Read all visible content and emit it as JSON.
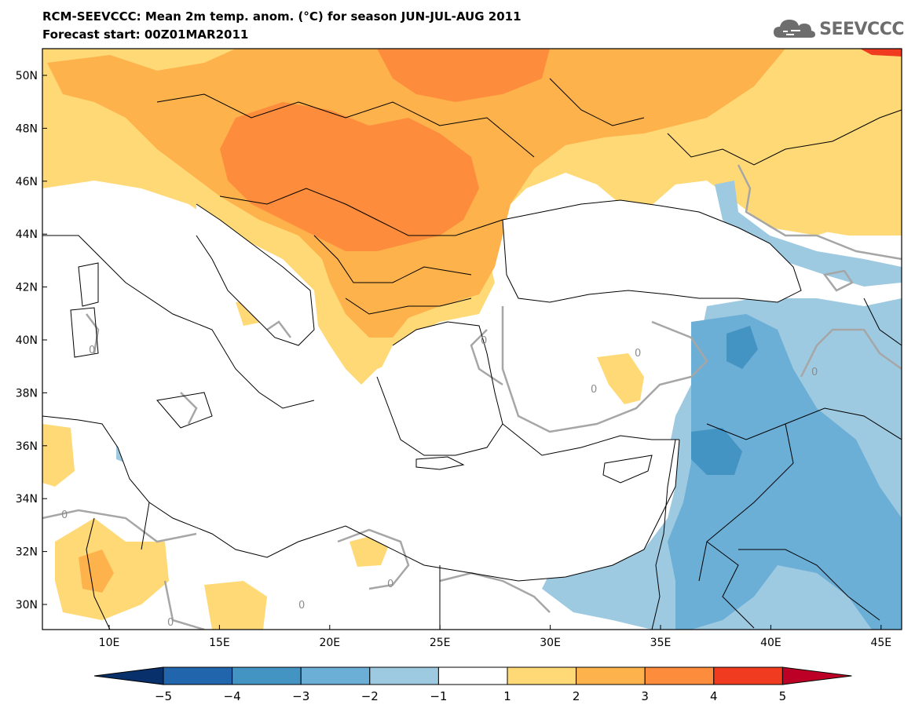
{
  "title_line1": "RCM-SEEVCCC: Mean 2m temp. anom. (°C) for season JUN-JUL-AUG 2011",
  "title_line2": "Forecast start: 00Z01MAR2011",
  "logo_text": "SEEVCCC",
  "lat_labels": [
    "50N",
    "48N",
    "46N",
    "44N",
    "42N",
    "40N",
    "38N",
    "36N",
    "34N",
    "32N",
    "30N"
  ],
  "lon_labels": [
    "10E",
    "15E",
    "20E",
    "25E",
    "30E",
    "35E",
    "40E",
    "45E"
  ],
  "contour_label": "0",
  "colorbar": {
    "tick_labels": [
      "−5",
      "−4",
      "−3",
      "−2",
      "−1",
      "1",
      "2",
      "3",
      "4",
      "5"
    ],
    "colors": [
      "#08306b",
      "#2166ac",
      "#4393c3",
      "#6baed6",
      "#9ecae1",
      "#ffffff",
      "#fed976",
      "#feb24c",
      "#fd8d3c",
      "#f03b20",
      "#bd0026"
    ]
  },
  "colors": {
    "land_line": "#000000",
    "contour": "#a6a6a6",
    "anom_p1": "#fed976",
    "anom_p2": "#feb24c",
    "anom_p3": "#fd8d3c",
    "anom_p4": "#f03b20",
    "anom_m1": "#9ecae1",
    "anom_m2": "#6baed6",
    "anom_m3": "#4393c3"
  }
}
